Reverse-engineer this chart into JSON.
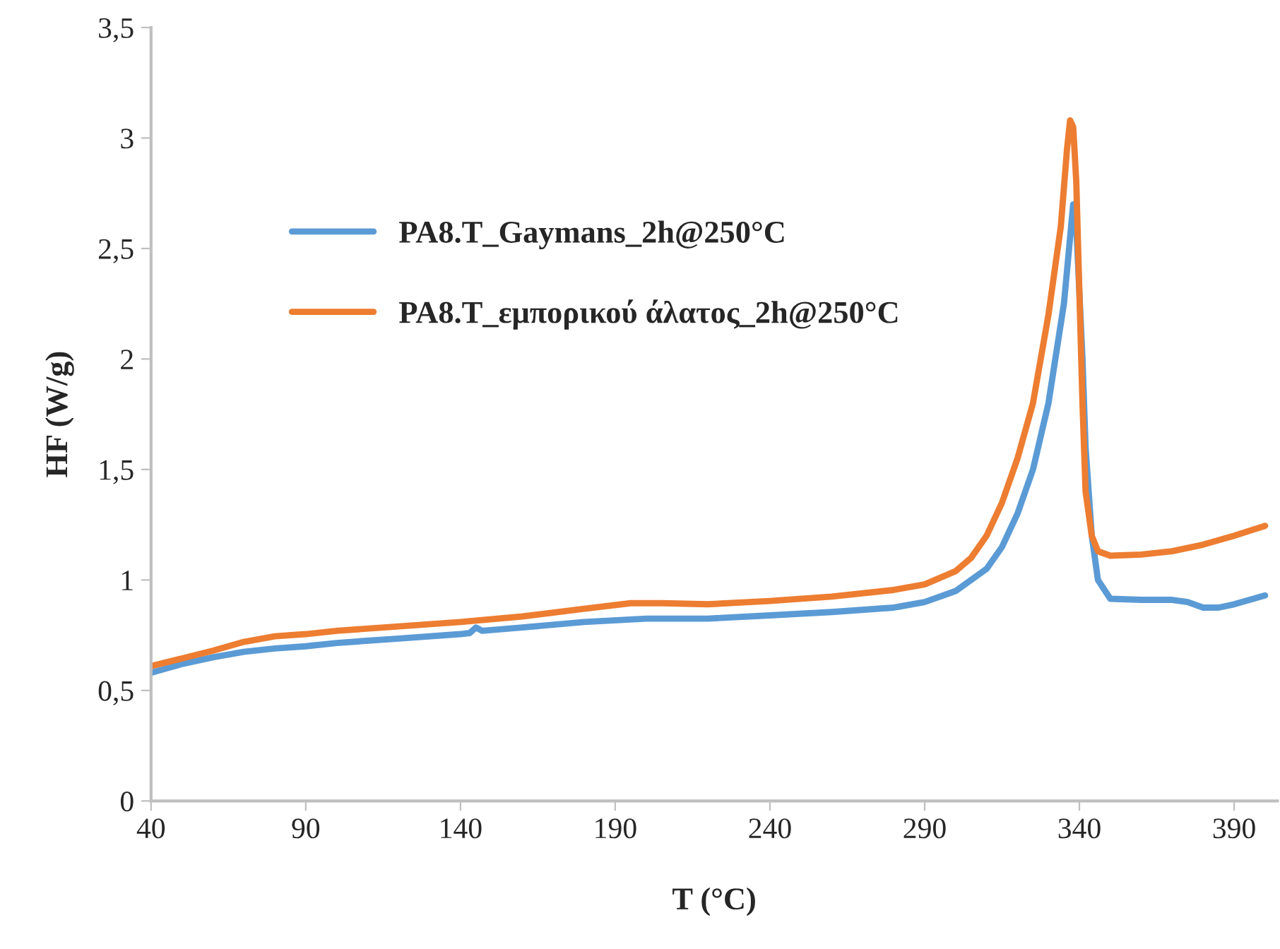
{
  "chart_data": {
    "type": "line",
    "xlabel": "T (°C)",
    "ylabel": "HF (W/g)",
    "xlim": [
      40,
      404
    ],
    "ylim": [
      0,
      3.5
    ],
    "xticks": [
      40,
      90,
      140,
      190,
      240,
      290,
      340,
      390
    ],
    "yticks": [
      0,
      {
        "value": 0.5,
        "label": "0,5"
      },
      1,
      {
        "value": 1.5,
        "label": "1,5"
      },
      2,
      {
        "value": 2.5,
        "label": "2,5"
      },
      3,
      {
        "value": 3.5,
        "label": "3,5"
      }
    ],
    "grid": false,
    "legend": "left",
    "marker": "none",
    "line_style": "solid",
    "series": [
      {
        "name": "PA8.T_Gaymans_2h@250°C",
        "color": "#5b9bd5",
        "x": [
          40,
          50,
          60,
          70,
          80,
          90,
          100,
          120,
          140,
          143,
          145,
          147,
          160,
          180,
          200,
          220,
          240,
          260,
          280,
          290,
          300,
          310,
          315,
          320,
          325,
          330,
          335,
          337,
          338,
          339,
          340,
          341,
          342,
          344,
          346,
          350,
          360,
          370,
          375,
          380,
          385,
          390,
          400
        ],
        "values": [
          0.58,
          0.62,
          0.65,
          0.675,
          0.69,
          0.7,
          0.715,
          0.735,
          0.755,
          0.76,
          0.785,
          0.77,
          0.785,
          0.81,
          0.825,
          0.825,
          0.84,
          0.855,
          0.875,
          0.9,
          0.95,
          1.05,
          1.15,
          1.3,
          1.5,
          1.8,
          2.25,
          2.55,
          2.7,
          2.6,
          2.3,
          2.0,
          1.6,
          1.2,
          1.0,
          0.915,
          0.91,
          0.91,
          0.9,
          0.875,
          0.875,
          0.89,
          0.93
        ]
      },
      {
        "name": "PA8.T_εμπορικού άλατος_2h@250°C",
        "color": "#ed7d31",
        "x": [
          40,
          50,
          60,
          70,
          80,
          90,
          100,
          120,
          140,
          160,
          180,
          195,
          205,
          220,
          240,
          260,
          280,
          290,
          300,
          305,
          310,
          315,
          320,
          325,
          330,
          334,
          336,
          337,
          338,
          339,
          340,
          341,
          342,
          344,
          346,
          350,
          360,
          370,
          380,
          390,
          400
        ],
        "values": [
          0.61,
          0.645,
          0.68,
          0.72,
          0.745,
          0.755,
          0.77,
          0.79,
          0.81,
          0.835,
          0.87,
          0.895,
          0.895,
          0.89,
          0.905,
          0.925,
          0.955,
          0.98,
          1.04,
          1.1,
          1.2,
          1.35,
          1.55,
          1.8,
          2.2,
          2.6,
          2.95,
          3.08,
          3.05,
          2.8,
          2.3,
          1.8,
          1.4,
          1.2,
          1.13,
          1.11,
          1.115,
          1.13,
          1.16,
          1.2,
          1.245
        ]
      }
    ]
  }
}
